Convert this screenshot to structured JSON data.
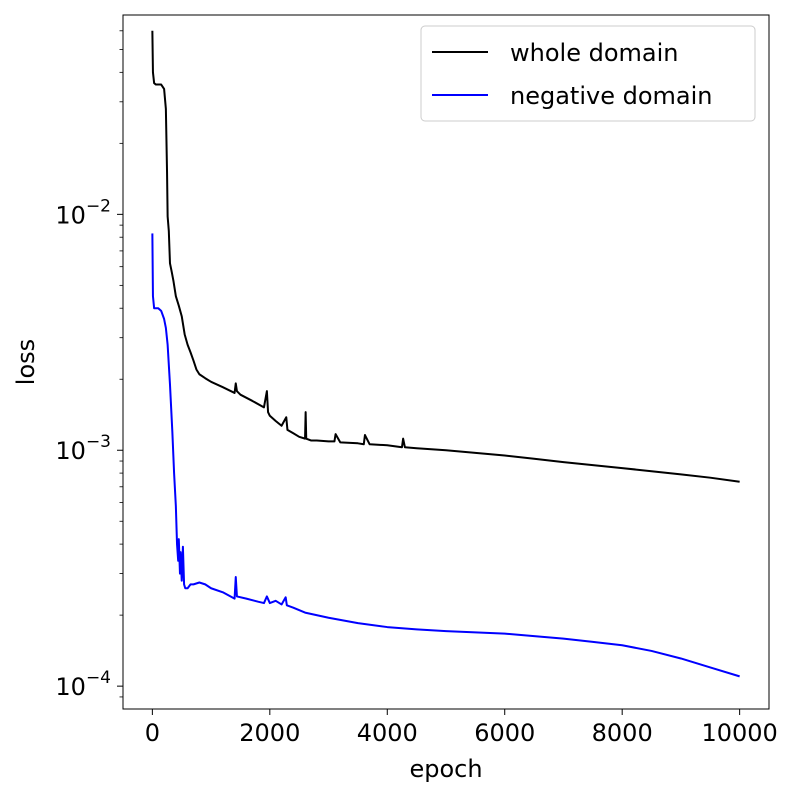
{
  "chart_data": {
    "type": "line",
    "xlabel": "epoch",
    "ylabel": "loss",
    "yscale": "log",
    "xlim": [
      -500,
      10500
    ],
    "ylim": [
      8e-05,
      0.07
    ],
    "xticks": [
      0,
      2000,
      4000,
      6000,
      8000,
      10000
    ],
    "xtick_labels": [
      "0",
      "2000",
      "4000",
      "6000",
      "8000",
      "10000"
    ],
    "yticks": [
      0.0001,
      0.001,
      0.01
    ],
    "ytick_labels": [
      {
        "base": "10",
        "exp": "−4"
      },
      {
        "base": "10",
        "exp": "−3"
      },
      {
        "base": "10",
        "exp": "−2"
      }
    ],
    "grid": false,
    "legend_position": "top-right",
    "series": [
      {
        "name": "whole domain",
        "color": "#000000",
        "x": [
          0,
          10,
          30,
          60,
          100,
          150,
          200,
          230,
          250,
          260,
          280,
          300,
          330,
          360,
          400,
          450,
          500,
          550,
          600,
          650,
          700,
          750,
          800,
          900,
          1000,
          1200,
          1400,
          1420,
          1440,
          1500,
          1700,
          1900,
          1950,
          1970,
          2000,
          2100,
          2200,
          2280,
          2300,
          2400,
          2500,
          2600,
          2610,
          2620,
          2700,
          2800,
          3000,
          3100,
          3120,
          3200,
          3500,
          3600,
          3620,
          3700,
          4000,
          4250,
          4270,
          4300,
          4500,
          5000,
          5500,
          6000,
          6500,
          7000,
          7500,
          8000,
          8500,
          9000,
          9500,
          10000
        ],
        "y": [
          0.06,
          0.04,
          0.036,
          0.0355,
          0.0355,
          0.0355,
          0.034,
          0.028,
          0.015,
          0.0098,
          0.0085,
          0.0062,
          0.0057,
          0.0052,
          0.0045,
          0.0041,
          0.0037,
          0.0031,
          0.0028,
          0.0026,
          0.0024,
          0.0022,
          0.0021,
          0.00202,
          0.00195,
          0.00185,
          0.00175,
          0.00192,
          0.00178,
          0.00172,
          0.00162,
          0.00152,
          0.00178,
          0.00145,
          0.0014,
          0.00133,
          0.00127,
          0.00138,
          0.00122,
          0.00118,
          0.00114,
          0.00112,
          0.00145,
          0.00112,
          0.0011,
          0.0011,
          0.00109,
          0.00109,
          0.00117,
          0.00108,
          0.00107,
          0.00106,
          0.00116,
          0.00106,
          0.00105,
          0.00103,
          0.00112,
          0.00103,
          0.00102,
          0.001,
          0.000975,
          0.00095,
          0.00092,
          0.00089,
          0.000865,
          0.00084,
          0.000815,
          0.00079,
          0.000765,
          0.000735
        ]
      },
      {
        "name": "negative domain",
        "color": "#0000ff",
        "x": [
          0,
          10,
          30,
          60,
          100,
          150,
          200,
          230,
          260,
          300,
          340,
          370,
          400,
          420,
          440,
          450,
          470,
          480,
          500,
          520,
          540,
          560,
          600,
          650,
          700,
          800,
          900,
          1000,
          1200,
          1400,
          1420,
          1440,
          1600,
          1800,
          1900,
          1950,
          2000,
          2100,
          2200,
          2270,
          2290,
          2400,
          2600,
          3000,
          3500,
          4000,
          4500,
          5000,
          5500,
          6000,
          6500,
          7000,
          7500,
          8000,
          8500,
          9000,
          9500,
          10000
        ],
        "y": [
          0.0083,
          0.0045,
          0.004,
          0.004,
          0.004,
          0.0039,
          0.0036,
          0.0033,
          0.0028,
          0.0019,
          0.0012,
          0.0008,
          0.00058,
          0.0004,
          0.00034,
          0.00042,
          0.0003,
          0.00037,
          0.00028,
          0.00039,
          0.00027,
          0.00026,
          0.00026,
          0.00027,
          0.00027,
          0.000275,
          0.00027,
          0.00026,
          0.00025,
          0.000235,
          0.00029,
          0.00024,
          0.000235,
          0.000228,
          0.000225,
          0.00024,
          0.000225,
          0.00023,
          0.000222,
          0.000238,
          0.00022,
          0.000215,
          0.000205,
          0.000195,
          0.000185,
          0.000178,
          0.000174,
          0.000171,
          0.000169,
          0.000167,
          0.000163,
          0.000159,
          0.000154,
          0.000149,
          0.000141,
          0.000131,
          0.00012,
          0.00011
        ]
      }
    ]
  }
}
